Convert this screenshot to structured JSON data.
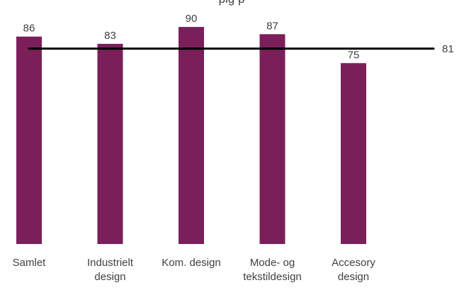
{
  "chart_data": {
    "type": "bar",
    "title": "",
    "title_partial": "...pig    ...p...",
    "categories": [
      [
        "Samlet"
      ],
      [
        "Industrielt",
        "design"
      ],
      [
        "Kom. design"
      ],
      [
        "Mode- og",
        "tekstildesign"
      ],
      [
        "Accesory",
        "design"
      ]
    ],
    "values": [
      86,
      83,
      90,
      87,
      75
    ],
    "reference_line": {
      "value": 81,
      "label": "81",
      "color": "#000000"
    },
    "ylim": [
      0,
      100
    ],
    "xlabel": "",
    "ylabel": "",
    "grid": false,
    "legend": "none",
    "colors": {
      "bar": "#7b1f5a",
      "text": "#404040",
      "line": "#000000"
    }
  }
}
